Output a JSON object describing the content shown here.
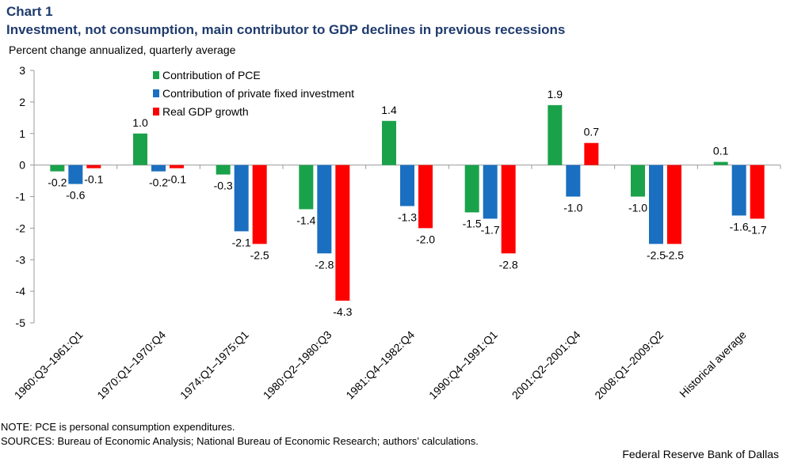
{
  "header": {
    "chart_number": "Chart 1",
    "title": "Investment, not consumption, main contributor to GDP declines in previous recessions",
    "subtitle": "Percent change annualized,  quarterly average"
  },
  "footer": {
    "note": "NOTE: PCE is personal consumption expenditures.",
    "sources": "SOURCES: Bureau of Economic Analysis; National Bureau of Economic Research; authors’ calculations.",
    "credit": "Federal Reserve Bank of Dallas"
  },
  "colors": {
    "pce": "#1aa24a",
    "investment": "#1a6fc0",
    "gdp": "#ff0000",
    "title": "#1f3b6e"
  },
  "chart_data": {
    "type": "bar",
    "title": "Investment, not consumption, main contributor to GDP declines in previous recessions",
    "ylabel": "Percent change annualized,  quarterly average",
    "xlabel": "",
    "ylim": [
      -5,
      3
    ],
    "yticks": [
      3,
      2,
      1,
      0,
      -1,
      -2,
      -3,
      -4,
      -5
    ],
    "grid": false,
    "legend_position": "top-left",
    "categories": [
      "1960:Q3–1961:Q1",
      "1970:Q1–1970:Q4",
      "1974:Q1–1975:Q1",
      "1980:Q2–1980:Q3",
      "1981:Q4–1982:Q4",
      "1990:Q4–1991:Q1",
      "2001:Q2–2001:Q4",
      "2008:Q1–2009:Q2",
      "Historical average"
    ],
    "series": [
      {
        "name": "Contribution of PCE",
        "color": "#1aa24a",
        "values": [
          -0.2,
          1.0,
          -0.3,
          -1.4,
          1.4,
          -1.5,
          1.9,
          -1.0,
          0.1
        ],
        "labels": [
          "-0.2",
          "1.0",
          "-0.3",
          "-1.4",
          "1.4",
          "-1.5",
          "1.9",
          "-1.0",
          "0.1"
        ]
      },
      {
        "name": "Contribution of private fixed investment",
        "color": "#1a6fc0",
        "values": [
          -0.6,
          -0.2,
          -2.1,
          -2.8,
          -1.3,
          -1.7,
          -1.0,
          -2.5,
          -1.6
        ],
        "labels": [
          "-0.6",
          "-0.2",
          "-2.1",
          "-2.8",
          "-1.3",
          "-1.7",
          "-1.0",
          "-2.5",
          "-1.6"
        ]
      },
      {
        "name": "Real GDP growth",
        "color": "#ff0000",
        "values": [
          -0.1,
          -0.1,
          -2.5,
          -4.3,
          -2.0,
          -2.8,
          0.7,
          -2.5,
          -1.7
        ],
        "labels": [
          "-0.1",
          "-0.1",
          "-2.5",
          "-4.3",
          "-2.0",
          "-2.8",
          "0.7",
          "-2.5",
          "-1.7"
        ]
      }
    ]
  }
}
